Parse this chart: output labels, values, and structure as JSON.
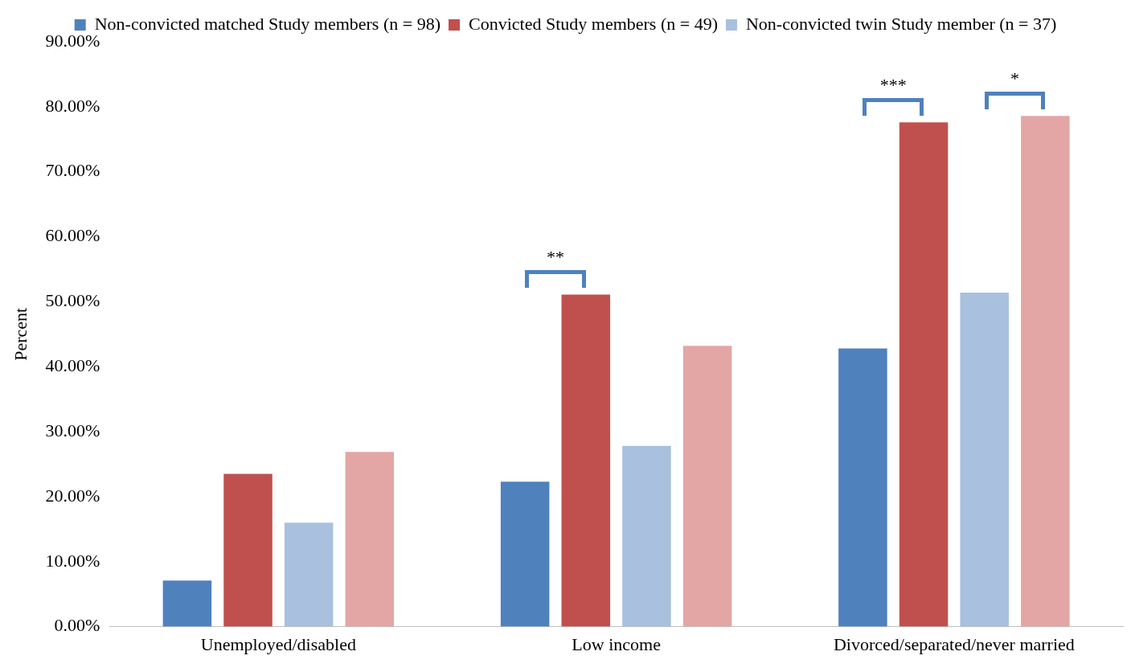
{
  "chart_data": {
    "type": "bar",
    "ylabel": "Percent",
    "categories": [
      "Unemployed/disabled",
      "Low income",
      "Divorced/separated/never married"
    ],
    "series": [
      {
        "name": "Non-convicted matched Study members (n = 98)",
        "color": "#4f81bd",
        "values": [
          7.1,
          22.3,
          42.8
        ]
      },
      {
        "name": "Convicted Study members (n = 49)",
        "color": "#c0504d",
        "values": [
          23.5,
          51.1,
          77.6
        ]
      },
      {
        "name": "Non-convicted twin Study member (n = 37)",
        "color": "#a9c0de",
        "values": [
          16.0,
          27.8,
          51.4
        ]
      },
      {
        "color": "#e3a6a4",
        "values": [
          26.9,
          43.2,
          78.6
        ]
      }
    ],
    "ylim": [
      0,
      90
    ],
    "yticks": [
      {
        "value": 0,
        "label": "0.00%"
      },
      {
        "value": 10,
        "label": "10.00%"
      },
      {
        "value": 20,
        "label": "20.00%"
      },
      {
        "value": 30,
        "label": "30.00%"
      },
      {
        "value": 40,
        "label": "40.00%"
      },
      {
        "value": 50,
        "label": "50.00%"
      },
      {
        "value": 60,
        "label": "60.00%"
      },
      {
        "value": 70,
        "label": "70.00%"
      },
      {
        "value": 80,
        "label": "80.00%"
      },
      {
        "value": 90,
        "label": "90.00%"
      }
    ],
    "grid": false,
    "legend": "top",
    "annotations": [
      "**",
      "***",
      "*"
    ]
  }
}
